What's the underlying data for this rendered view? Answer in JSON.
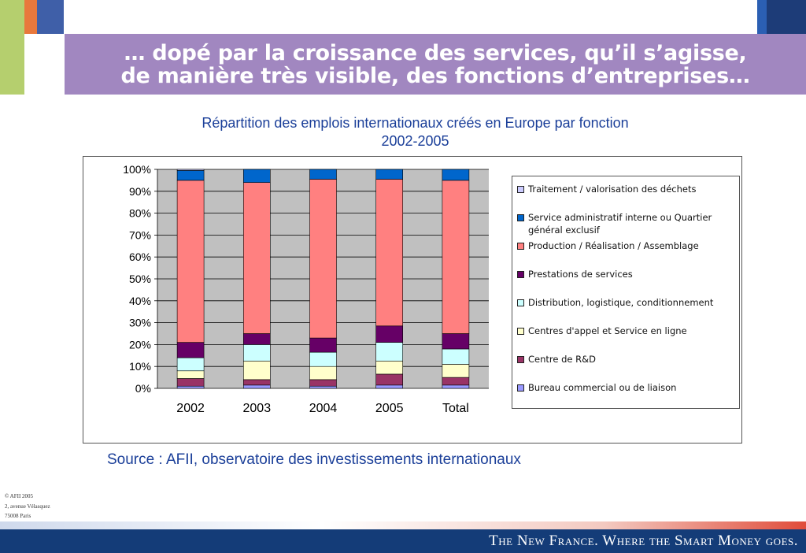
{
  "slide": {
    "title_line1": "… dopé par la croissance des services, qu’il s’agisse,",
    "title_line2": "de manière très visible, des fonctions d’entreprises…",
    "source": "Source : AFII, observatoire des investissements internationaux",
    "footer_line1": "© AFII 2005",
    "footer_line2": "2, avenue Vélasquez",
    "footer_line3": "75008 Paris",
    "tagline": "The New France. Where the Smart Money goes."
  },
  "colors": {
    "accent_purple": "#a187c0",
    "text_blue": "#1b3f99",
    "footer_navy": "#143c78"
  },
  "chart_data": {
    "type": "bar",
    "stacked": true,
    "title": "Répartition des emplois internationaux créés en Europe par fonction",
    "subtitle": "2002-2005",
    "categories": [
      "2002",
      "2003",
      "2004",
      "2005",
      "Total"
    ],
    "ylim": [
      0,
      100
    ],
    "y_ticks": [
      "0%",
      "10%",
      "20%",
      "30%",
      "40%",
      "50%",
      "60%",
      "70%",
      "80%",
      "90%",
      "100%"
    ],
    "grid": true,
    "legend_position": "right",
    "series": [
      {
        "name": "Bureau commercial ou de liaison",
        "color": "#9999ff",
        "values": [
          1,
          1.5,
          1,
          1.5,
          1.5
        ]
      },
      {
        "name": "Centre de R&D",
        "color": "#993366",
        "values": [
          3.5,
          2.5,
          3,
          5,
          3.5
        ]
      },
      {
        "name": "Centres d'appel et Service en ligne",
        "color": "#ffffcc",
        "values": [
          3.5,
          8.5,
          6,
          6,
          6
        ]
      },
      {
        "name": "Distribution, logistique, conditionnement",
        "color": "#ccffff",
        "values": [
          6,
          7.5,
          6.5,
          8.5,
          7
        ]
      },
      {
        "name": "Prestations de services",
        "color": "#660066",
        "values": [
          7,
          5,
          6.5,
          7.5,
          7
        ]
      },
      {
        "name": "Production / Réalisation / Assemblage",
        "color": "#ff8080",
        "values": [
          74,
          69,
          72.5,
          67,
          70
        ]
      },
      {
        "name": "Service administratif interne ou Quartier général exclusif",
        "color": "#0066cc",
        "values": [
          4.5,
          6,
          4.5,
          4.5,
          5
        ]
      },
      {
        "name": "Traitement / valorisation des déchets",
        "color": "#ccccff",
        "values": [
          0.5,
          0,
          0,
          0,
          0
        ]
      }
    ]
  },
  "legend": [
    {
      "label": "Traitement / valorisation des déchets",
      "color": "#ccccff"
    },
    {
      "label": "Service administratif interne ou Quartier général exclusif",
      "color": "#0066cc"
    },
    {
      "label": "Production / Réalisation / Assemblage",
      "color": "#ff8080"
    },
    {
      "label": "Prestations de services",
      "color": "#660066"
    },
    {
      "label": "Distribution, logistique, conditionnement",
      "color": "#ccffff"
    },
    {
      "label": "Centres d'appel et Service en ligne",
      "color": "#ffffcc"
    },
    {
      "label": "Centre de R&D",
      "color": "#993366"
    },
    {
      "label": "Bureau commercial ou de liaison",
      "color": "#9999ff"
    }
  ]
}
